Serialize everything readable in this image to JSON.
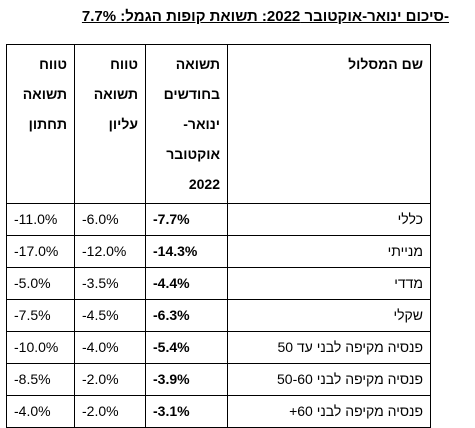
{
  "title": "סיכום ינואר-אוקטובר 2022: תשואת קופות הגמל: 7.7%-",
  "table": {
    "headers": {
      "name": "שם המסלול",
      "return_lines": [
        "תשואה",
        "בחודשים",
        "ינואר-",
        "אוקטובר",
        "2022"
      ],
      "upper_range_lines": [
        "טווח",
        "תשואה",
        "עליון"
      ],
      "lower_range_lines": [
        "טווח",
        "תשואה",
        "תחתון"
      ]
    },
    "rows": [
      {
        "name": "כללי",
        "return": "-7.7%",
        "upper": "-6.0%",
        "lower": "-11.0%"
      },
      {
        "name": "מנייתי",
        "return": "-14.3%",
        "upper": "-12.0%",
        "lower": "-17.0%"
      },
      {
        "name": "מדדי",
        "return": "-4.4%",
        "upper": "-3.5%",
        "lower": "-5.0%"
      },
      {
        "name": "שקלי",
        "return": "-6.3%",
        "upper": "-4.5%",
        "lower": "-7.5%"
      },
      {
        "name": "פנסיה מקיפה לבני עד 50",
        "return": "-5.4%",
        "upper": "-4.0%",
        "lower": "-10.0%"
      },
      {
        "name": "פנסיה מקיפה לבני 50-60",
        "return": "-3.9%",
        "upper": "-2.0%",
        "lower": "-8.5%"
      },
      {
        "name": "פנסיה מקיפה לבני 60+",
        "return": "-3.1%",
        "upper": "-2.0%",
        "lower": "-4.0%"
      }
    ]
  }
}
